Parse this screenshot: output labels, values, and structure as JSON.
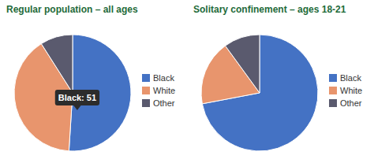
{
  "chart_data": [
    {
      "type": "pie",
      "title": "Regular population – all ages",
      "categories": [
        "Black",
        "White",
        "Other"
      ],
      "values": [
        51,
        40,
        9
      ],
      "colors": [
        "#4472c4",
        "#e8956d",
        "#5a5a6e"
      ],
      "legend": "right",
      "annotations": [
        "Black: 51"
      ]
    },
    {
      "type": "pie",
      "title": "Solitary confinement – ages 18-21",
      "categories": [
        "Black",
        "White",
        "Other"
      ],
      "values": [
        72,
        18,
        10
      ],
      "colors": [
        "#4472c4",
        "#e8956d",
        "#5a5a6e"
      ],
      "legend": "right"
    }
  ]
}
